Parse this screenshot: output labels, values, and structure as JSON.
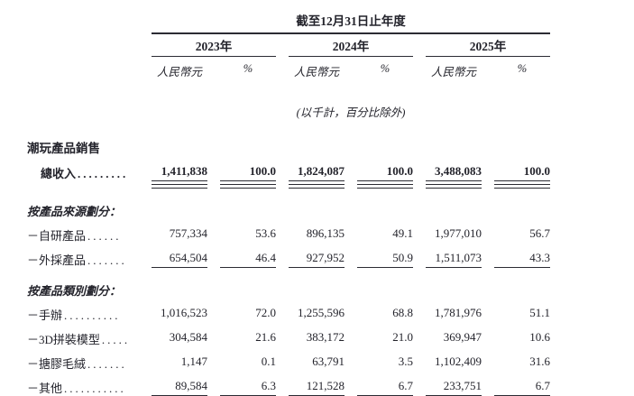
{
  "colors": {
    "ink": "#23232b",
    "background": "#ffffff",
    "rule": "#2b2b33"
  },
  "table": {
    "period_header": "截至12月31日止年度",
    "unit_note": "(以千計，百分比除外)",
    "year_groups": [
      {
        "year": "2023年",
        "currency_label": "人民幣元",
        "percent_label": "%"
      },
      {
        "year": "2024年",
        "currency_label": "人民幣元",
        "percent_label": "%"
      },
      {
        "year": "2025年",
        "currency_label": "人民幣元",
        "percent_label": "%"
      }
    ],
    "rows": [
      {
        "type": "header",
        "label": "潮玩產品銷售",
        "dots": "",
        "values": []
      },
      {
        "type": "total",
        "label": "總收入",
        "dots": ".........",
        "values": [
          "1,411,838",
          "100.0",
          "1,824,087",
          "100.0",
          "3,488,083",
          "100.0"
        ]
      },
      {
        "type": "section",
        "label": "按產品來源劃分：",
        "dots": "",
        "values": []
      },
      {
        "type": "item",
        "label": "－自研產品",
        "dots": "......",
        "values": [
          "757,334",
          "53.6",
          "896,135",
          "49.1",
          "1,977,010",
          "56.7"
        ]
      },
      {
        "type": "item-underline",
        "label": "－外採產品",
        "dots": ".......",
        "values": [
          "654,504",
          "46.4",
          "927,952",
          "50.9",
          "1,511,073",
          "43.3"
        ]
      },
      {
        "type": "section",
        "label": "按產品類別劃分：",
        "dots": "",
        "values": []
      },
      {
        "type": "item",
        "label": "－手辦",
        "dots": "..........",
        "values": [
          "1,016,523",
          "72.0",
          "1,255,596",
          "68.8",
          "1,781,976",
          "51.1"
        ]
      },
      {
        "type": "item",
        "label": "－3D拼裝模型",
        "dots": ".....",
        "values": [
          "304,584",
          "21.6",
          "383,172",
          "21.0",
          "369,947",
          "10.6"
        ]
      },
      {
        "type": "item",
        "label": "－搪膠毛絨",
        "dots": ".......",
        "values": [
          "1,147",
          "0.1",
          "63,791",
          "3.5",
          "1,102,409",
          "31.6"
        ]
      },
      {
        "type": "item-underline",
        "label": "－其他",
        "dots": "...........",
        "values": [
          "89,584",
          "6.3",
          "121,528",
          "6.7",
          "233,751",
          "6.7"
        ]
      }
    ]
  }
}
